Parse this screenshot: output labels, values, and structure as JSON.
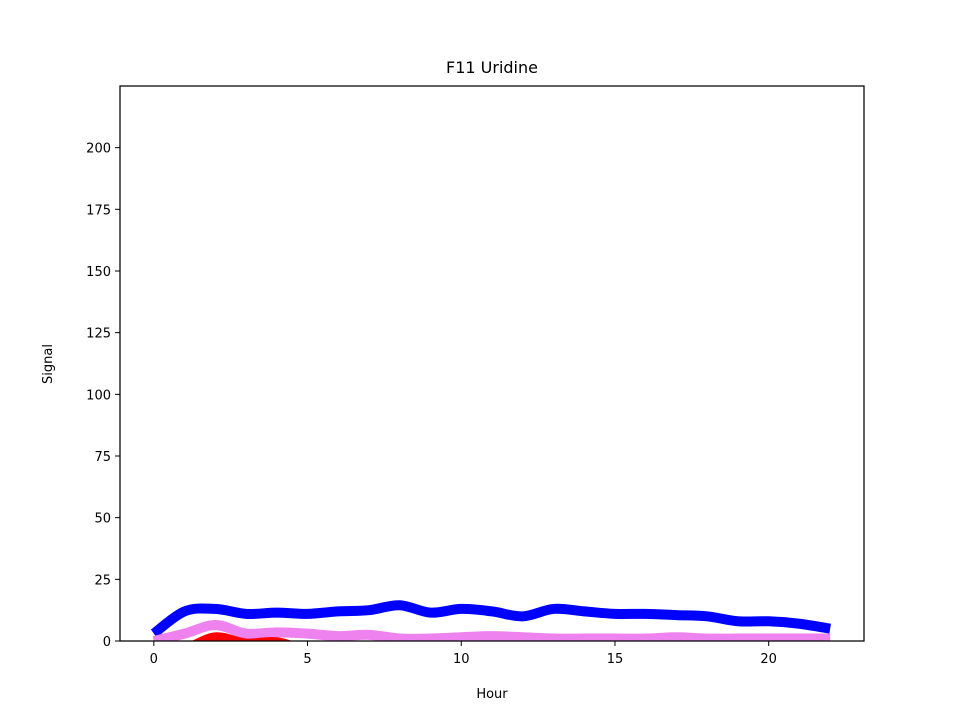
{
  "chart_data": {
    "type": "line",
    "title": "F11 Uridine",
    "xlabel": "Hour",
    "ylabel": "Signal",
    "xlim": [
      -1.1,
      23.1
    ],
    "ylim": [
      0,
      225
    ],
    "xticks": [
      0,
      5,
      10,
      15,
      20
    ],
    "yticks": [
      0,
      25,
      50,
      75,
      100,
      125,
      150,
      175,
      200
    ],
    "grid": false,
    "x": [
      0,
      1,
      2,
      3,
      4,
      5,
      6,
      7,
      8,
      9,
      10,
      11,
      12,
      13,
      14,
      15,
      16,
      17,
      18,
      19,
      20,
      21,
      22
    ],
    "series": [
      {
        "color": "#0000ff",
        "line_width": 5.5,
        "values": [
          3,
          12,
          13,
          11,
          11.5,
          11,
          12,
          12.5,
          14.5,
          11.5,
          13,
          12,
          10,
          13,
          12,
          11,
          11,
          10.5,
          10,
          8,
          8,
          7,
          5
        ]
      },
      {
        "color": "#ee82ee",
        "line_width": 5.5,
        "values": [
          0,
          3,
          6.5,
          3,
          3.5,
          3,
          2,
          2.5,
          1,
          1,
          1.5,
          2,
          1.5,
          1,
          1,
          1,
          1,
          1.5,
          1,
          1,
          1,
          1,
          1
        ]
      },
      {
        "color": "#ff0000",
        "line_width": 5.5,
        "values": [
          -2,
          -3,
          1.5,
          -1,
          -0.5,
          -4,
          -6,
          -6,
          -6,
          -6,
          -6,
          -6,
          -6,
          -6,
          -6,
          -6,
          -6,
          -6,
          -6,
          -6,
          -6,
          -6,
          -6
        ]
      }
    ]
  }
}
